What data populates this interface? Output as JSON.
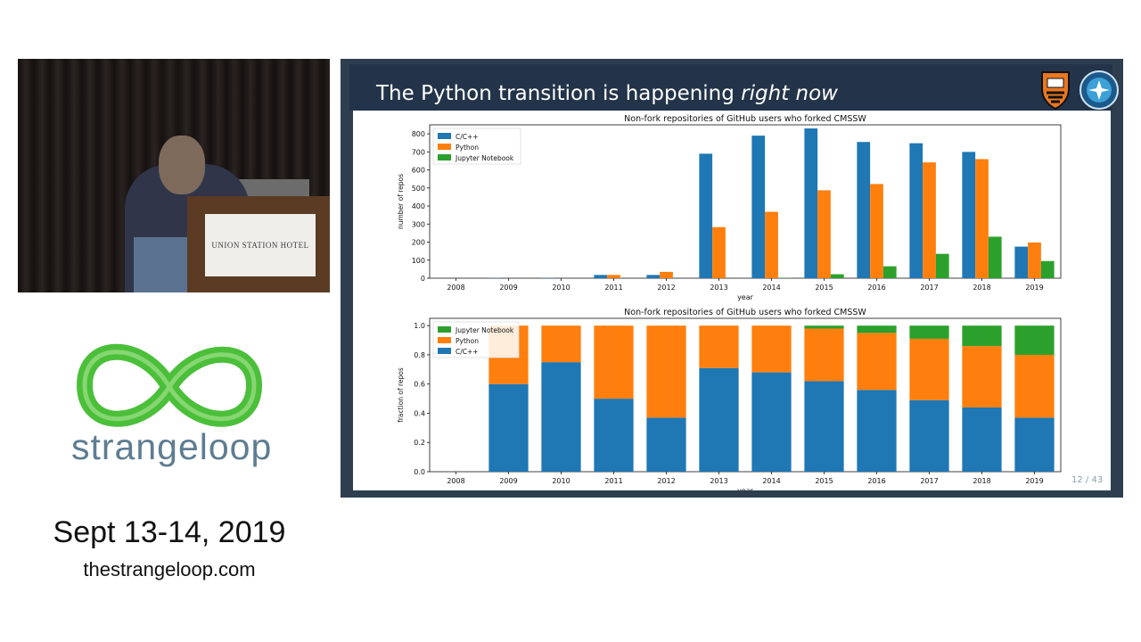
{
  "video": {
    "sign_text": "UNION STATION HOTEL"
  },
  "branding": {
    "logo_text": "strangeloop",
    "dates": "Sept 13-14, 2019",
    "website": "thestrangeloop.com",
    "logo_color": "#4bbf3a"
  },
  "slide": {
    "title_plain": "The Python transition is happening ",
    "title_emphasis": "right now",
    "page_number": "12 / 43"
  },
  "colors": {
    "cpp": "#1f77b4",
    "python": "#ff7f0e",
    "jupyter": "#2ca02c"
  },
  "chart_data": [
    {
      "type": "bar",
      "title": "Non-fork repositories of GitHub users who forked CMSSW",
      "xlabel": "year",
      "ylabel": "number of repos",
      "categories": [
        "2008",
        "2009",
        "2010",
        "2011",
        "2012",
        "2013",
        "2014",
        "2015",
        "2016",
        "2017",
        "2018",
        "2019"
      ],
      "ylim": [
        0,
        850
      ],
      "yticks": [
        0,
        100,
        200,
        300,
        400,
        500,
        600,
        700,
        800
      ],
      "legend": "top-left",
      "series": [
        {
          "name": "C/C++",
          "values": [
            0,
            2,
            2,
            18,
            18,
            690,
            790,
            830,
            755,
            748,
            700,
            175
          ]
        },
        {
          "name": "Python",
          "values": [
            0,
            0,
            0,
            18,
            35,
            283,
            368,
            487,
            522,
            642,
            660,
            198
          ]
        },
        {
          "name": "Jupyter Notebook",
          "values": [
            0,
            0,
            0,
            0,
            0,
            0,
            2,
            22,
            66,
            135,
            230,
            95
          ]
        }
      ]
    },
    {
      "type": "bar",
      "stacked": true,
      "title": "Non-fork repositories of GitHub users who forked CMSSW",
      "xlabel": "year",
      "ylabel": "fraction of repos",
      "categories": [
        "2008",
        "2009",
        "2010",
        "2011",
        "2012",
        "2013",
        "2014",
        "2015",
        "2016",
        "2017",
        "2018",
        "2019"
      ],
      "ylim": [
        0,
        1.05
      ],
      "yticks": [
        0.0,
        0.2,
        0.4,
        0.6,
        0.8,
        1.0
      ],
      "legend": "top-left",
      "series": [
        {
          "name": "C/C++",
          "values": [
            0,
            0.6,
            0.75,
            0.5,
            0.37,
            0.71,
            0.68,
            0.62,
            0.56,
            0.49,
            0.44,
            0.37
          ]
        },
        {
          "name": "Python",
          "values": [
            0,
            0.4,
            0.25,
            0.5,
            0.63,
            0.29,
            0.32,
            0.36,
            0.39,
            0.42,
            0.42,
            0.43
          ]
        },
        {
          "name": "Jupyter Notebook",
          "values": [
            0,
            0,
            0,
            0,
            0,
            0,
            0,
            0.02,
            0.05,
            0.09,
            0.14,
            0.2
          ]
        }
      ]
    }
  ]
}
